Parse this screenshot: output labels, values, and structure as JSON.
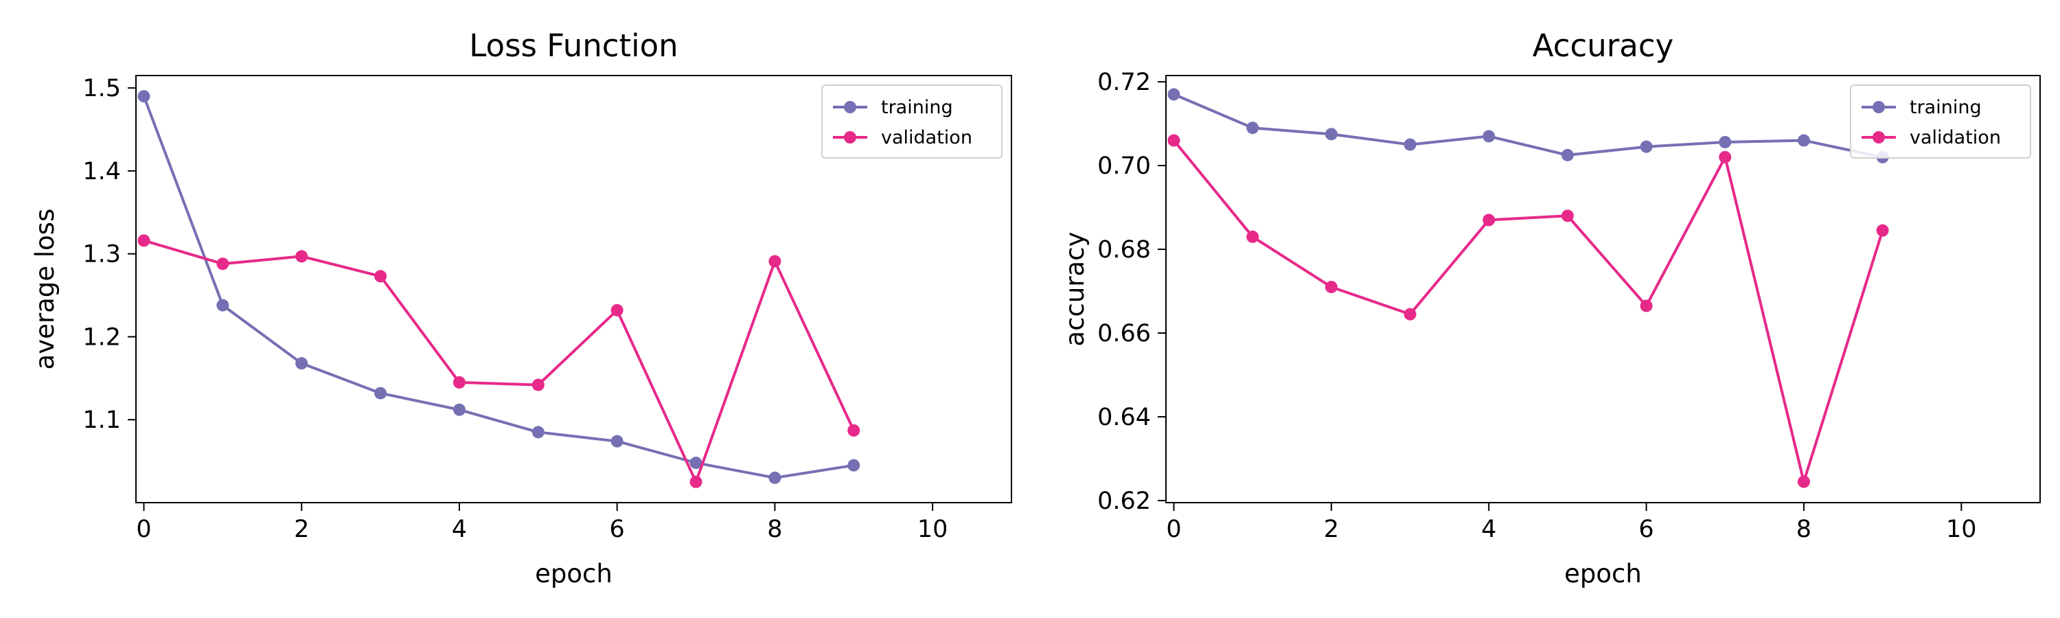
{
  "chart_data": [
    {
      "type": "line",
      "title": "Loss Function",
      "xlabel": "epoch",
      "ylabel": "average loss",
      "xlim": [
        -0.1,
        11.0
      ],
      "ylim": [
        1.0,
        1.515
      ],
      "xticks": [
        0,
        2,
        4,
        6,
        8,
        10
      ],
      "yticks": [
        1.1,
        1.2,
        1.3,
        1.4,
        1.5
      ],
      "ytick_labels": [
        "1.1",
        "1.2",
        "1.3",
        "1.4",
        "1.5"
      ],
      "grid": false,
      "legend_position": "top-right",
      "x": [
        0,
        1,
        2,
        3,
        4,
        5,
        6,
        7,
        8,
        9
      ],
      "series": [
        {
          "name": "training",
          "color": "#7570b3",
          "values": [
            1.49,
            1.238,
            1.168,
            1.132,
            1.112,
            1.085,
            1.074,
            1.048,
            1.03,
            1.045
          ]
        },
        {
          "name": "validation",
          "color": "#e7298a",
          "values": [
            1.316,
            1.288,
            1.297,
            1.273,
            1.145,
            1.142,
            1.232,
            1.025,
            1.291,
            1.087
          ]
        }
      ]
    },
    {
      "type": "line",
      "title": "Accuracy",
      "xlabel": "epoch",
      "ylabel": "accuracy",
      "xlim": [
        -0.1,
        11.0
      ],
      "ylim": [
        0.6195,
        0.7215
      ],
      "xticks": [
        0,
        2,
        4,
        6,
        8,
        10
      ],
      "yticks": [
        0.62,
        0.64,
        0.66,
        0.68,
        0.7,
        0.72
      ],
      "ytick_labels": [
        "0.62",
        "0.64",
        "0.66",
        "0.68",
        "0.70",
        "0.72"
      ],
      "grid": false,
      "legend_position": "top-right",
      "x": [
        0,
        1,
        2,
        3,
        4,
        5,
        6,
        7,
        8,
        9
      ],
      "series": [
        {
          "name": "training",
          "color": "#7570b3",
          "values": [
            0.717,
            0.709,
            0.7075,
            0.705,
            0.707,
            0.7025,
            0.7045,
            0.7056,
            0.706,
            0.702
          ]
        },
        {
          "name": "validation",
          "color": "#e7298a",
          "values": [
            0.706,
            0.683,
            0.671,
            0.6645,
            0.687,
            0.688,
            0.6665,
            0.702,
            0.6245,
            0.6845
          ]
        }
      ]
    }
  ]
}
